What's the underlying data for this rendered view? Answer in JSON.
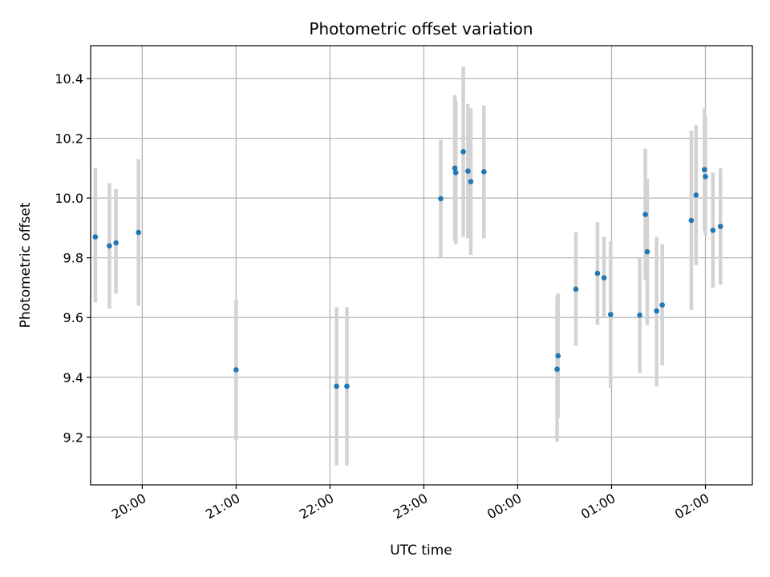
{
  "chart_data": {
    "type": "scatter",
    "title": "Photometric offset variation",
    "xlabel": "UTC time",
    "ylabel": "Photometric offset",
    "x_unit": "hours since 00:00 UTC (negative = previous day)",
    "xlim": [
      -4.55,
      2.5
    ],
    "ylim": [
      9.04,
      10.51
    ],
    "grid": true,
    "x_ticks": [
      {
        "value": -4,
        "label": "20:00"
      },
      {
        "value": -3,
        "label": "21:00"
      },
      {
        "value": -2,
        "label": "22:00"
      },
      {
        "value": -1,
        "label": "23:00"
      },
      {
        "value": 0,
        "label": "00:00"
      },
      {
        "value": 1,
        "label": "01:00"
      },
      {
        "value": 2,
        "label": "02:00"
      }
    ],
    "y_ticks": [
      {
        "value": 9.2,
        "label": "9.2"
      },
      {
        "value": 9.4,
        "label": "9.4"
      },
      {
        "value": 9.6,
        "label": "9.6"
      },
      {
        "value": 9.8,
        "label": "9.8"
      },
      {
        "value": 10.0,
        "label": "10.0"
      },
      {
        "value": 10.2,
        "label": "10.2"
      },
      {
        "value": 10.4,
        "label": "10.4"
      }
    ],
    "colors": {
      "marker": "#1f77b4",
      "errorbar": "#d3d3d3",
      "grid": "#b0b0b0",
      "axes": "#000000"
    },
    "points": [
      {
        "x": -4.5,
        "y": 9.87,
        "lo": 9.65,
        "hi": 10.1
      },
      {
        "x": -4.35,
        "y": 9.84,
        "lo": 9.63,
        "hi": 10.05
      },
      {
        "x": -4.28,
        "y": 9.85,
        "lo": 9.68,
        "hi": 10.03
      },
      {
        "x": -4.04,
        "y": 9.885,
        "lo": 9.64,
        "hi": 10.13
      },
      {
        "x": -3.0,
        "y": 9.425,
        "lo": 9.19,
        "hi": 9.66
      },
      {
        "x": -1.93,
        "y": 9.37,
        "lo": 9.105,
        "hi": 9.635
      },
      {
        "x": -1.82,
        "y": 9.37,
        "lo": 9.105,
        "hi": 9.635
      },
      {
        "x": -0.82,
        "y": 9.998,
        "lo": 9.8,
        "hi": 10.195
      },
      {
        "x": -0.67,
        "y": 10.1,
        "lo": 9.855,
        "hi": 10.345
      },
      {
        "x": -0.66,
        "y": 10.085,
        "lo": 9.845,
        "hi": 10.325
      },
      {
        "x": -0.58,
        "y": 10.155,
        "lo": 9.87,
        "hi": 10.44
      },
      {
        "x": -0.53,
        "y": 10.09,
        "lo": 9.865,
        "hi": 10.315
      },
      {
        "x": -0.5,
        "y": 10.055,
        "lo": 9.81,
        "hi": 10.3
      },
      {
        "x": -0.36,
        "y": 10.088,
        "lo": 9.865,
        "hi": 10.31
      },
      {
        "x": 0.43,
        "y": 9.472,
        "lo": 9.265,
        "hi": 9.68
      },
      {
        "x": 0.42,
        "y": 9.427,
        "lo": 9.185,
        "hi": 9.67
      },
      {
        "x": 0.62,
        "y": 9.695,
        "lo": 9.505,
        "hi": 9.885
      },
      {
        "x": 0.85,
        "y": 9.748,
        "lo": 9.575,
        "hi": 9.92
      },
      {
        "x": 0.92,
        "y": 9.733,
        "lo": 9.6,
        "hi": 9.87
      },
      {
        "x": 0.99,
        "y": 9.61,
        "lo": 9.365,
        "hi": 9.855
      },
      {
        "x": 1.3,
        "y": 9.608,
        "lo": 9.415,
        "hi": 9.8
      },
      {
        "x": 1.36,
        "y": 9.945,
        "lo": 9.725,
        "hi": 10.165
      },
      {
        "x": 1.38,
        "y": 9.82,
        "lo": 9.575,
        "hi": 10.065
      },
      {
        "x": 1.48,
        "y": 9.622,
        "lo": 9.37,
        "hi": 9.87
      },
      {
        "x": 1.54,
        "y": 9.642,
        "lo": 9.44,
        "hi": 9.845
      },
      {
        "x": 1.85,
        "y": 9.925,
        "lo": 9.625,
        "hi": 10.225
      },
      {
        "x": 1.9,
        "y": 10.01,
        "lo": 9.775,
        "hi": 10.245
      },
      {
        "x": 1.99,
        "y": 10.095,
        "lo": 9.89,
        "hi": 10.3
      },
      {
        "x": 2.0,
        "y": 10.072,
        "lo": 9.875,
        "hi": 10.27
      },
      {
        "x": 2.08,
        "y": 9.892,
        "lo": 9.7,
        "hi": 10.085
      },
      {
        "x": 2.16,
        "y": 9.905,
        "lo": 9.71,
        "hi": 10.1
      }
    ]
  }
}
